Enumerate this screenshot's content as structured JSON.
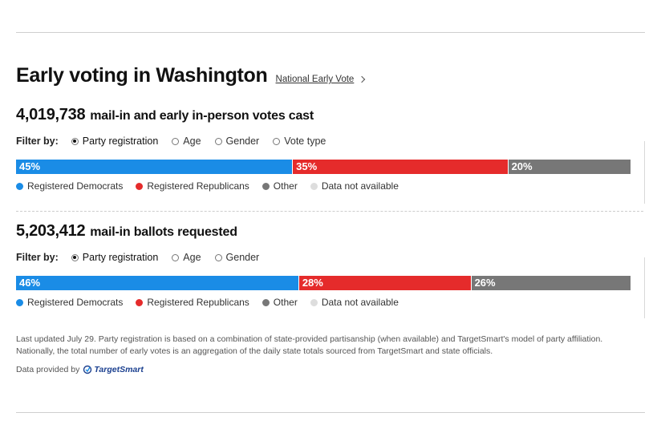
{
  "header": {
    "title": "Early voting in Washington",
    "link_label": "National Early Vote"
  },
  "colors": {
    "democrats": "#1a8ce6",
    "republicans": "#e52b2b",
    "other": "#777777",
    "not_available": "#dddddd"
  },
  "sections": [
    {
      "count": "4,019,738",
      "subtitle": "mail-in and early in-person votes cast",
      "filter_label": "Filter by:",
      "filters": [
        "Party registration",
        "Age",
        "Gender",
        "Vote type"
      ],
      "selected_filter": "Party registration"
    },
    {
      "count": "5,203,412",
      "subtitle": "mail-in ballots requested",
      "filter_label": "Filter by:",
      "filters": [
        "Party registration",
        "Age",
        "Gender"
      ],
      "selected_filter": "Party registration"
    }
  ],
  "legend": [
    "Registered Democrats",
    "Registered Republicans",
    "Other",
    "Data not available"
  ],
  "chart_data": [
    {
      "type": "bar",
      "orientation": "horizontal-stacked",
      "categories": [
        "Registered Democrats",
        "Registered Republicans",
        "Other"
      ],
      "values": [
        45,
        35,
        20
      ],
      "labels": [
        "45%",
        "35%",
        "20%"
      ]
    },
    {
      "type": "bar",
      "orientation": "horizontal-stacked",
      "categories": [
        "Registered Democrats",
        "Registered Republicans",
        "Other"
      ],
      "values": [
        46,
        28,
        26
      ],
      "labels": [
        "46%",
        "28%",
        "26%"
      ]
    }
  ],
  "footer": {
    "note": "Last updated July 29. Party registration is based on a combination of state-provided partisanship (when available) and TargetSmart's model of party affiliation. Nationally, the total number of early votes is an aggregation of the daily state totals sourced from TargetSmart and state officials.",
    "provided_by": "Data provided by",
    "provider_logo_text": "TargetSmart"
  }
}
